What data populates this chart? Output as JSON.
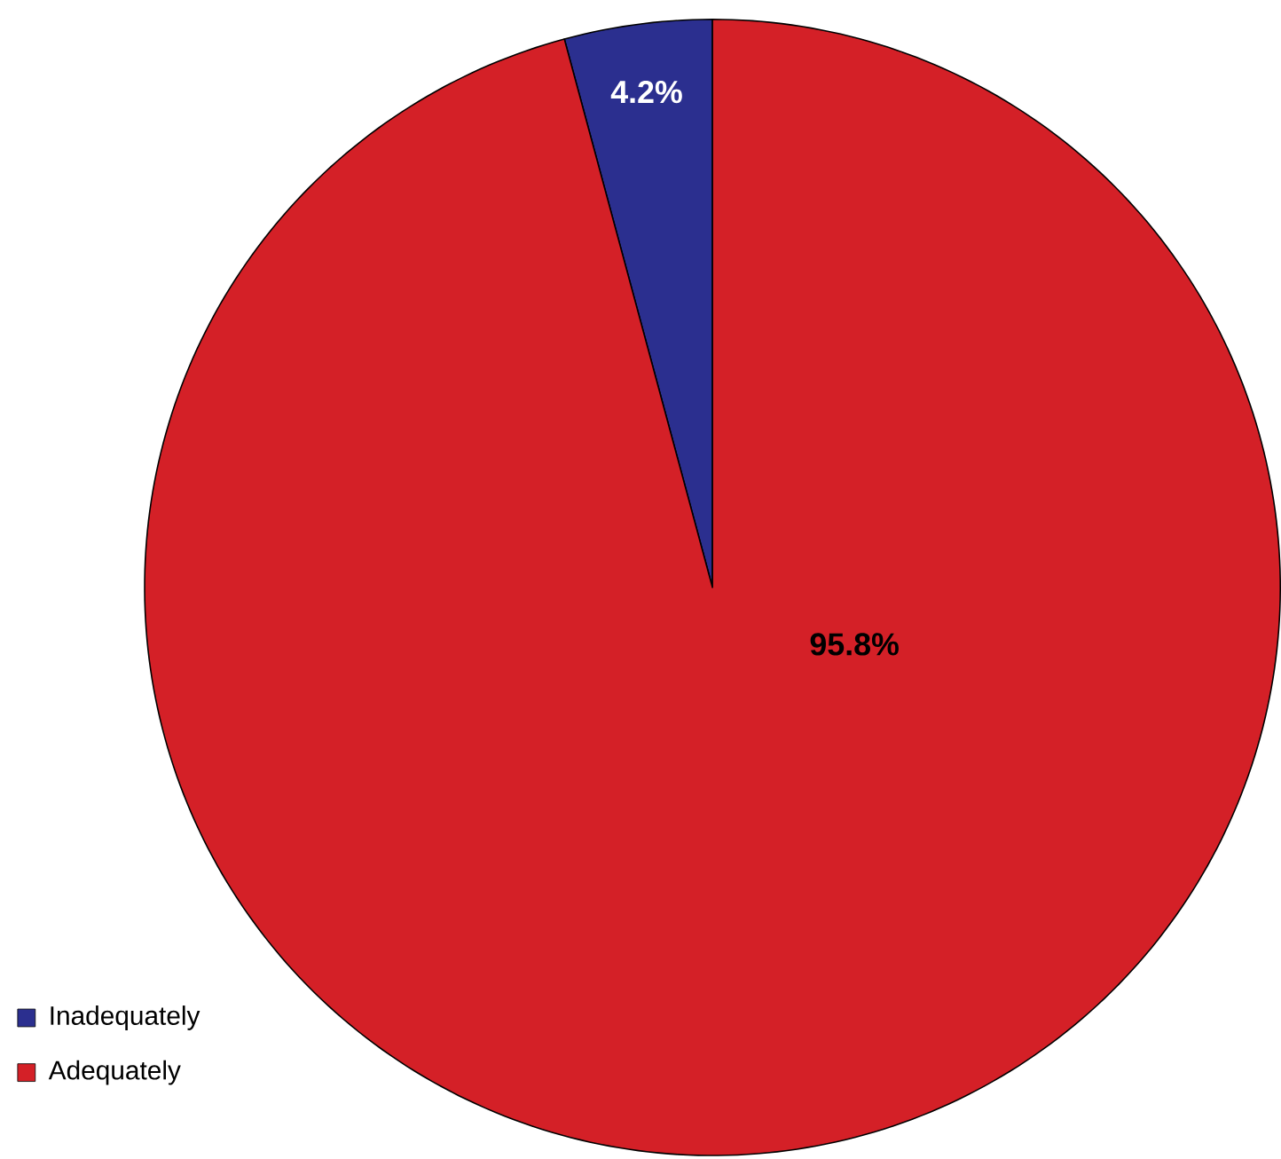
{
  "chart_data": {
    "type": "pie",
    "categories": [
      "Inadequately",
      "Adequately"
    ],
    "values": [
      4.2,
      95.8
    ],
    "colors": [
      "#2b2f8f",
      "#d42027"
    ],
    "value_labels": [
      "4.2%",
      "95.8%"
    ],
    "legend": "bottom left"
  }
}
